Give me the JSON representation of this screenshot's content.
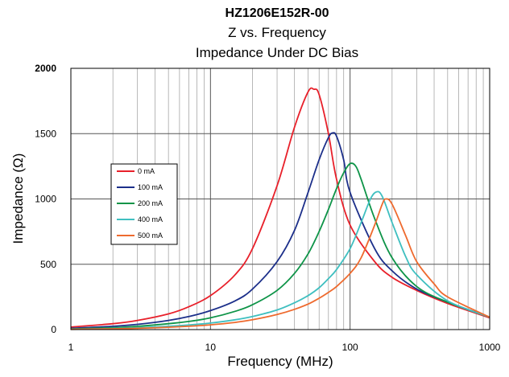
{
  "chart_data": {
    "type": "line",
    "title": "HZ1206E152R-00",
    "subtitle": [
      "Z vs. Frequency",
      "Impedance Under DC Bias"
    ],
    "xlabel": "Frequency (MHz)",
    "ylabel": "Impedance (Ω)",
    "x_scale": "log",
    "xlim": [
      1,
      1000
    ],
    "ylim": [
      0,
      2000
    ],
    "x_ticks": [
      "1",
      "10",
      "100",
      "1000"
    ],
    "y_ticks": [
      "0",
      "500",
      "1000",
      "1500",
      "2000"
    ],
    "grid": true,
    "legend_position": "left",
    "series": [
      {
        "name": "0 mA",
        "color": "#e8202a",
        "x": [
          1,
          2,
          3,
          5,
          7,
          10,
          15,
          20,
          30,
          40,
          50,
          55,
          60,
          70,
          80,
          100,
          150,
          200,
          300,
          500,
          1000
        ],
        "y": [
          20,
          45,
          70,
          120,
          175,
          260,
          420,
          620,
          1100,
          1550,
          1820,
          1840,
          1800,
          1500,
          1150,
          800,
          520,
          400,
          300,
          200,
          90
        ]
      },
      {
        "name": "100 mA",
        "color": "#1c2f8a",
        "x": [
          1,
          2,
          3,
          5,
          7,
          10,
          15,
          20,
          30,
          40,
          50,
          60,
          70,
          75,
          80,
          90,
          100,
          150,
          200,
          300,
          500,
          1000
        ],
        "y": [
          10,
          25,
          40,
          70,
          100,
          145,
          220,
          310,
          520,
          760,
          1050,
          1300,
          1470,
          1505,
          1480,
          1300,
          1050,
          620,
          450,
          310,
          210,
          95
        ]
      },
      {
        "name": "200 mA",
        "color": "#0e9448",
        "x": [
          1,
          2,
          3,
          5,
          7,
          10,
          15,
          20,
          30,
          40,
          50,
          60,
          70,
          80,
          90,
          100,
          110,
          120,
          150,
          200,
          300,
          500,
          1000
        ],
        "y": [
          5,
          15,
          25,
          45,
          62,
          90,
          140,
          190,
          300,
          430,
          580,
          750,
          920,
          1080,
          1200,
          1270,
          1250,
          1150,
          850,
          550,
          330,
          210,
          95
        ]
      },
      {
        "name": "400 mA",
        "color": "#3fbfc0",
        "x": [
          1,
          2,
          3,
          5,
          7,
          10,
          15,
          20,
          30,
          40,
          50,
          60,
          70,
          80,
          100,
          120,
          140,
          155,
          170,
          200,
          250,
          300,
          500,
          1000
        ],
        "y": [
          3,
          8,
          14,
          25,
          35,
          50,
          75,
          100,
          150,
          205,
          260,
          320,
          390,
          460,
          620,
          820,
          1000,
          1055,
          1020,
          820,
          560,
          420,
          220,
          95
        ]
      },
      {
        "name": "500 mA",
        "color": "#ee6a2e",
        "x": [
          1,
          2,
          3,
          5,
          7,
          10,
          15,
          20,
          30,
          40,
          50,
          60,
          70,
          80,
          100,
          120,
          150,
          170,
          180,
          200,
          250,
          300,
          400,
          500,
          1000
        ],
        "y": [
          2,
          6,
          10,
          18,
          25,
          36,
          55,
          75,
          115,
          155,
          195,
          240,
          285,
          330,
          430,
          550,
          800,
          960,
          1000,
          960,
          720,
          520,
          350,
          250,
          95
        ]
      }
    ]
  }
}
